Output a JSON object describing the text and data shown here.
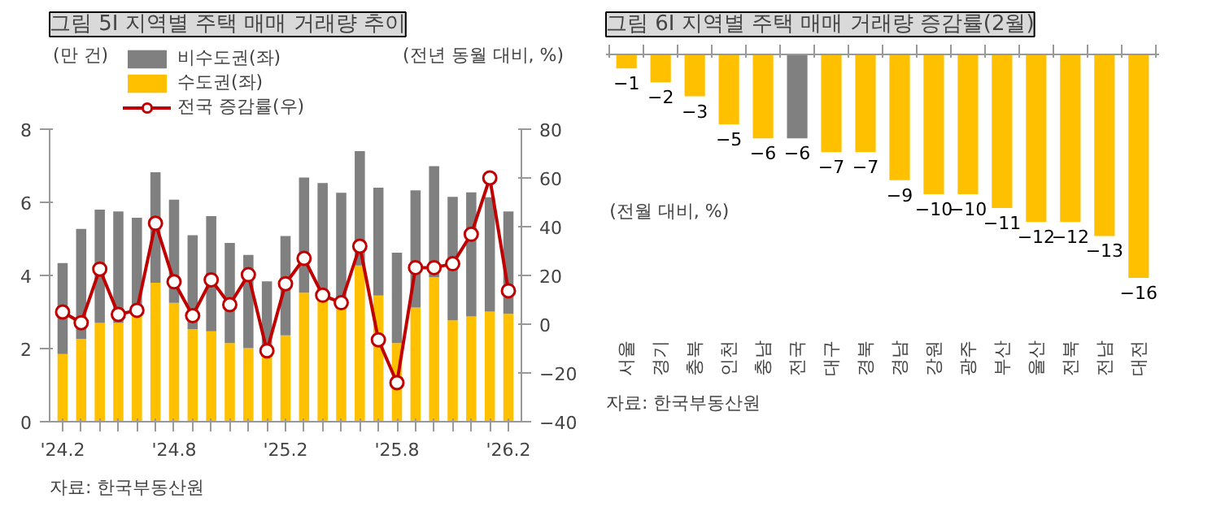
{
  "chart_data": [
    {
      "type": "bar",
      "title": "그림 5I 지역별 주택 매매 거래량 추이",
      "ylabel": "(만 건)",
      "y2label": "(전년 동월 대비, %)",
      "categories": [
        "'24.2",
        null,
        null,
        null,
        null,
        null,
        "'24.8",
        null,
        null,
        null,
        null,
        null,
        "'25.2",
        null,
        null,
        null,
        null,
        null,
        "'25.8",
        null,
        null,
        null,
        null,
        null,
        "'26.2"
      ],
      "stacked": true,
      "series": [
        {
          "name": "수도권(좌)",
          "color": "#ffc000",
          "values": [
            1.85,
            2.26,
            2.7,
            2.7,
            2.88,
            3.8,
            3.25,
            2.53,
            2.47,
            2.15,
            2.01,
            1.78,
            2.36,
            3.53,
            3.4,
            3.15,
            4.27,
            3.45,
            2.15,
            3.12,
            3.95,
            2.77,
            2.88,
            3.01,
            2.95
          ]
        },
        {
          "name": "비수도권(좌)",
          "color": "#808080",
          "values": [
            2.49,
            3.01,
            3.1,
            3.05,
            2.7,
            3.02,
            2.82,
            2.57,
            3.15,
            2.74,
            2.55,
            2.06,
            2.72,
            3.15,
            3.13,
            3.11,
            3.13,
            2.95,
            2.47,
            3.21,
            3.04,
            3.38,
            3.39,
            3.13,
            2.8
          ]
        },
        {
          "name": "전국 증감률(우)",
          "type": "line",
          "axis": "y2",
          "color": "#c00000",
          "marker": "circle",
          "values": [
            5,
            0.6,
            22.6,
            4,
            5.7,
            41.4,
            17.4,
            3.5,
            18.2,
            8,
            20.3,
            -10.9,
            16.6,
            27,
            11.9,
            8.8,
            32,
            -6.4,
            -24,
            23.2,
            23.2,
            24.8,
            36.9,
            60,
            13.7
          ]
        }
      ],
      "ylim": [
        0,
        8
      ],
      "yticks": [
        0,
        2,
        4,
        6,
        8
      ],
      "y2lim": [
        -40,
        80
      ],
      "y2ticks": [
        -40,
        -20,
        0,
        20,
        40,
        60,
        80
      ],
      "legend": "top left",
      "grid": false,
      "annotations": [
        "자료: 한국부동산원"
      ]
    },
    {
      "type": "bar",
      "title": "그림 6I 지역별 주택 매매 거래량 증감률(2월)",
      "categories": [
        "서울",
        "경기",
        "충북",
        "인천",
        "충남",
        "전국",
        "대구",
        "경북",
        "경남",
        "강원",
        "광주",
        "부산",
        "울산",
        "전북",
        "전남",
        "대전"
      ],
      "values": [
        -1,
        -2,
        -3,
        -5,
        -6,
        -6,
        -7,
        -7,
        -9,
        -10,
        -10,
        -11,
        -12,
        -12,
        -13,
        -16
      ],
      "colors": [
        "#ffc000",
        "#ffc000",
        "#ffc000",
        "#ffc000",
        "#ffc000",
        "#808080",
        "#ffc000",
        "#ffc000",
        "#ffc000",
        "#ffc000",
        "#ffc000",
        "#ffc000",
        "#ffc000",
        "#ffc000",
        "#ffc000",
        "#ffc000"
      ],
      "data_labels": true,
      "grid": false,
      "annotations": [
        "(전월 대비, %)",
        "자료: 한국부동산원"
      ]
    }
  ]
}
